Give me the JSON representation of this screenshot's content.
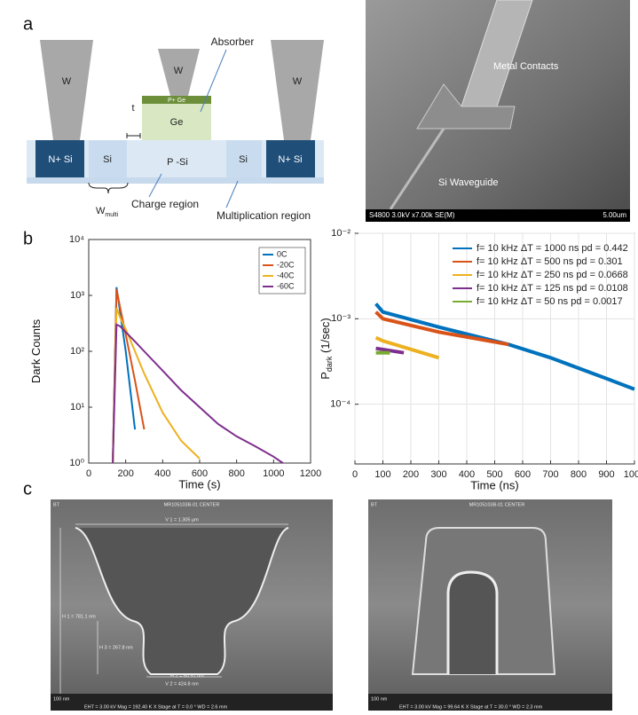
{
  "panel_labels": [
    "a",
    "b",
    "c"
  ],
  "panel_a": {
    "pillars": [
      "W",
      "W",
      "W"
    ],
    "pplus": "P+ Ge",
    "ge": "Ge",
    "absorber": "Absorber",
    "t": "t",
    "layer": [
      "N+ Si",
      "Si",
      "P -Si",
      "Si",
      "N+ Si"
    ],
    "w_label": "W",
    "w_sub": "multi",
    "charge": "Charge region",
    "multiplication": "Multiplication region",
    "sem": {
      "contacts": "Metal Contacts",
      "waveguide": "Si Waveguide",
      "info": "S4800 3.0kV x7.00k SE(M)",
      "scale": "5.00um"
    }
  },
  "panel_c": {
    "left": {
      "corner": "BT",
      "title": "MR105103B-01 CENTER",
      "v1": "V 1 = 1.305 µm",
      "h1": "H 1 = 781.1 nm",
      "h3": "H 3 = 267.8 nm",
      "h2": "H 2 = 60.91 nm",
      "v2": "V 2 = 424.8 nm",
      "scale": "100 nm",
      "footer": "EHT = 3.00 kV    Mag = 192.40 K X    Stage at T =  0.0 °    WD = 2.6 mm"
    },
    "right": {
      "corner": "BT",
      "title": "MR105103B-01 CENTER",
      "scale": "100 nm",
      "footer": "EHT = 3.00 kV    Mag = 99.64 K X    Stage at T = 30.0 °    WD = 2.3 mm"
    }
  },
  "chart_data": [
    {
      "type": "line",
      "xlabel": "Time (s)",
      "ylabel": "Dark Counts",
      "log_y": true,
      "grid": false,
      "legend": "upper right",
      "xlim": [
        0,
        1200
      ],
      "ylim": [
        1,
        10000
      ],
      "xticks": [
        0,
        200,
        400,
        600,
        800,
        1000,
        1200
      ],
      "yticks": [
        {
          "value": 1,
          "label": "10⁰"
        },
        {
          "value": 10,
          "label": "10¹"
        },
        {
          "value": 100,
          "label": "10²"
        },
        {
          "value": 1000,
          "label": "10³"
        },
        {
          "value": 10000,
          "label": "10⁴"
        }
      ],
      "x": [
        130,
        150,
        170,
        200,
        250,
        300,
        400,
        500,
        600,
        700,
        800,
        900,
        1000,
        1050
      ],
      "series": [
        {
          "name": "0C",
          "color": "#0072bd",
          "values": [
            1,
            1400,
            500,
            100,
            4,
            null,
            null,
            null,
            null,
            null,
            null,
            null,
            null,
            null
          ]
        },
        {
          "name": "-20C",
          "color": "#d95319",
          "values": [
            1,
            1300,
            600,
            200,
            30,
            4,
            null,
            null,
            null,
            null,
            null,
            null,
            null,
            null
          ]
        },
        {
          "name": "-40C",
          "color": "#edb120",
          "values": [
            1,
            600,
            400,
            250,
            100,
            40,
            8,
            2.5,
            1.2,
            null,
            null,
            null,
            null,
            null
          ]
        },
        {
          "name": "-60C",
          "color": "#7e2f8e",
          "values": [
            1,
            300,
            280,
            220,
            150,
            100,
            45,
            20,
            10,
            5,
            3,
            2,
            1.3,
            1
          ]
        }
      ]
    },
    {
      "type": "line",
      "xlabel": "Time (ns)",
      "ylabel": "P",
      "ylabel_sub": "dark",
      "ylabel_unit": "(1/sec)",
      "log_y": true,
      "grid": true,
      "legend": "upper right",
      "xlim": [
        0,
        1000
      ],
      "ylim": [
        2e-05,
        0.01
      ],
      "xticks": [
        0,
        100,
        200,
        300,
        400,
        500,
        600,
        700,
        800,
        900,
        1000
      ],
      "yticks": [
        {
          "value": 0.0001,
          "label": "10⁻⁴"
        },
        {
          "value": 0.001,
          "label": "10⁻³"
        },
        {
          "value": 0.01,
          "label": "10⁻²"
        }
      ],
      "series": [
        {
          "name": "f= 10 kHz  ΔT = 1000 ns  pd = 0.442",
          "color": "#0072bd",
          "x": [
            75,
            100,
            300,
            550,
            700,
            900,
            1000
          ],
          "values": [
            0.0015,
            0.0012,
            0.0008,
            0.0005,
            0.00035,
            0.0002,
            0.00015
          ]
        },
        {
          "name": "f= 10 kHz  ΔT =  500 ns  pd = 0.301",
          "color": "#d95319",
          "x": [
            75,
            100,
            300,
            550
          ],
          "values": [
            0.0012,
            0.001,
            0.0007,
            0.0005
          ]
        },
        {
          "name": "f= 10 kHz  ΔT =  250 ns  pd = 0.0668",
          "color": "#edb120",
          "x": [
            75,
            100,
            300
          ],
          "values": [
            0.0006,
            0.00055,
            0.00035
          ]
        },
        {
          "name": "f= 10 kHz  ΔT =  125 ns  pd = 0.0108",
          "color": "#7e2f8e",
          "x": [
            75,
            175
          ],
          "values": [
            0.00045,
            0.0004
          ]
        },
        {
          "name": "f= 10 kHz  ΔT =  50 ns  pd = 0.0017",
          "color": "#77ac30",
          "x": [
            75,
            125
          ],
          "values": [
            0.0004,
            0.0004
          ]
        }
      ]
    }
  ]
}
